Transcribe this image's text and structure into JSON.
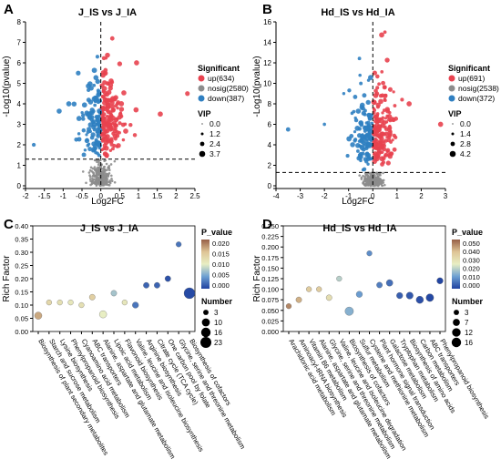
{
  "panel_letters": [
    "A",
    "B",
    "C",
    "D"
  ],
  "colors": {
    "up": "#e8424f",
    "nosig": "#8c8c8c",
    "down": "#2f7fc1"
  },
  "chart_data": [
    {
      "type": "scatter",
      "panel": "A",
      "title": "J_IS vs J_IA",
      "xlabel": "Log2FC",
      "ylabel": "-Log10(pvalue)",
      "xlim": [
        -2,
        2.5
      ],
      "ylim": [
        0,
        8
      ],
      "xticks": [
        "-2",
        "-1.5",
        "-1",
        "-0.5",
        "0",
        "0.5",
        "1",
        "1.5",
        "2",
        "2.5"
      ],
      "yticks": [
        "0",
        "1",
        "2",
        "3",
        "4",
        "5",
        "6",
        "7",
        "8"
      ],
      "threshold_y": 1.3,
      "threshold_x": 0,
      "legend_significant_title": "Significant",
      "series": [
        {
          "name": "up(634)",
          "key": "up",
          "count": 634
        },
        {
          "name": "nosig(2580)",
          "key": "nosig",
          "count": 2580
        },
        {
          "name": "down(387)",
          "key": "down",
          "count": 387
        }
      ],
      "legend_vip_title": "VIP",
      "vip_levels": [
        "0.0",
        "1.2",
        "2.4",
        "3.7"
      ],
      "outliers": [
        {
          "x": -1.78,
          "y": 2.0,
          "key": "down"
        },
        {
          "x": -0.85,
          "y": 4.0,
          "key": "down"
        },
        {
          "x": -0.6,
          "y": 5.5,
          "key": "down"
        },
        {
          "x": 2.3,
          "y": 4.5,
          "key": "up"
        },
        {
          "x": 1.58,
          "y": 3.5,
          "key": "up"
        },
        {
          "x": 0.95,
          "y": 6.0,
          "key": "up"
        }
      ]
    },
    {
      "type": "scatter",
      "panel": "B",
      "title": "Hd_IS vs Hd_IA",
      "xlabel": "Log2FC",
      "ylabel": "-Log10(pvalue)",
      "xlim": [
        -4,
        3
      ],
      "ylim": [
        0,
        16
      ],
      "xticks": [
        "-4",
        "-3",
        "-2",
        "-1",
        "0",
        "1",
        "2",
        "3"
      ],
      "yticks": [
        "0",
        "2",
        "4",
        "6",
        "8",
        "10",
        "12",
        "14",
        "16"
      ],
      "threshold_y": 1.3,
      "threshold_x": 0,
      "legend_significant_title": "Significant",
      "series": [
        {
          "name": "up(691)",
          "key": "up",
          "count": 691
        },
        {
          "name": "nosig(2538)",
          "key": "nosig",
          "count": 2538
        },
        {
          "name": "down(372)",
          "key": "down",
          "count": 372
        }
      ],
      "legend_vip_title": "VIP",
      "vip_levels": [
        "0.0",
        "1.4",
        "2.8",
        "4.2"
      ],
      "outliers": [
        {
          "x": -3.5,
          "y": 5.5,
          "key": "down"
        },
        {
          "x": -2.0,
          "y": 6.0,
          "key": "down"
        },
        {
          "x": -1.2,
          "y": 9.0,
          "key": "down"
        },
        {
          "x": 2.8,
          "y": 6.0,
          "key": "up"
        },
        {
          "x": 1.5,
          "y": 8.0,
          "key": "up"
        },
        {
          "x": 0.5,
          "y": 15.0,
          "key": "up"
        }
      ]
    },
    {
      "type": "scatter",
      "panel": "C",
      "title": "J_IS vs J_IA",
      "ylabel": "Rich Factor",
      "ylim": [
        0,
        0.4
      ],
      "yticks": [
        "0.00",
        "0.05",
        "0.10",
        "0.15",
        "0.20",
        "0.25",
        "0.30",
        "0.35",
        "0.40"
      ],
      "color_legend_title": "P_value",
      "color_ticks": [
        "0.020",
        "0.015",
        "0.010",
        "0.005",
        "0.000"
      ],
      "size_legend_title": "Number",
      "size_levels": [
        "3",
        "10",
        "16",
        "23"
      ],
      "categories": [
        "Biosynthesis of plant secondary metabolites",
        "Starch and sucrose metabolism",
        "Lysine biosynthesis",
        "Phenylpropanoid biosynthesis",
        "Cyanoamino acid metabolism",
        "ABC transporters",
        "Alanine, aspartate and glutamate metabolism",
        "Lipoic acid metabolism",
        "Flavonoid biosynthesis",
        "Valine, leucine and isoleucine biosynthesis",
        "Arginine biosynthesis",
        "Citrate cycle (TCA cycle)",
        "One carbon pool by folate",
        "Glycine, serine and threonine metabolism",
        "Biosynthesis of cofactors"
      ],
      "rich_factor": [
        0.06,
        0.11,
        0.11,
        0.11,
        0.1,
        0.13,
        0.065,
        0.145,
        0.11,
        0.1,
        0.175,
        0.175,
        0.2,
        0.33,
        0.145
      ],
      "p_value": [
        0.018,
        0.014,
        0.013,
        0.012,
        0.013,
        0.015,
        0.011,
        0.008,
        0.012,
        0.003,
        0.002,
        0.002,
        0.001,
        0.003,
        0.0005
      ],
      "number": [
        8,
        3,
        3,
        3,
        3,
        4,
        8,
        4,
        3,
        5,
        4,
        4,
        4,
        3,
        23
      ]
    },
    {
      "type": "scatter",
      "panel": "D",
      "title": "Hd_IS vs Hd_IA",
      "ylabel": "Rich Factor",
      "ylim": [
        0,
        0.25
      ],
      "yticks": [
        "0.000",
        "0.025",
        "0.050",
        "0.075",
        "0.100",
        "0.125",
        "0.150",
        "0.175",
        "0.200",
        "0.225",
        "0.250"
      ],
      "color_legend_title": "P_value",
      "color_ticks": [
        "0.050",
        "0.040",
        "0.030",
        "0.020",
        "0.010",
        "0.000"
      ],
      "size_legend_title": "Number",
      "size_levels": [
        "3",
        "7",
        "12",
        "16"
      ],
      "categories": [
        "Arachidonic acid metabolism",
        "Aminoacyl-tRNA biosynthesis",
        "Vitamin B6 metabolism",
        "Alanine, aspartate and glutamate metabolism",
        "Glycine, serine and threonine metabolism",
        "Valine, leucine and isoleucine degradation",
        "Biosynthesis of cofactors",
        "Sulfur metabolism",
        "Cysteine and methionine metabolism",
        "Plant hormone signal transduction",
        "Galactose metabolism",
        "Tryptophan metabolism",
        "Biosynthesis of amino acids",
        "Carbon metabolism",
        "ABC transporters",
        "Phenylpropanoid biosynthesis"
      ],
      "rich_factor": [
        0.06,
        0.075,
        0.1,
        0.1,
        0.08,
        0.125,
        0.048,
        0.088,
        0.185,
        0.11,
        0.115,
        0.085,
        0.085,
        0.075,
        0.08,
        0.12
      ],
      "p_value": [
        0.045,
        0.04,
        0.035,
        0.035,
        0.03,
        0.02,
        0.015,
        0.012,
        0.01,
        0.008,
        0.006,
        0.004,
        0.003,
        0.002,
        0.001,
        0.0005
      ],
      "number": [
        3,
        4,
        3,
        3,
        4,
        3,
        12,
        5,
        3,
        4,
        6,
        5,
        7,
        8,
        9,
        5
      ]
    }
  ]
}
